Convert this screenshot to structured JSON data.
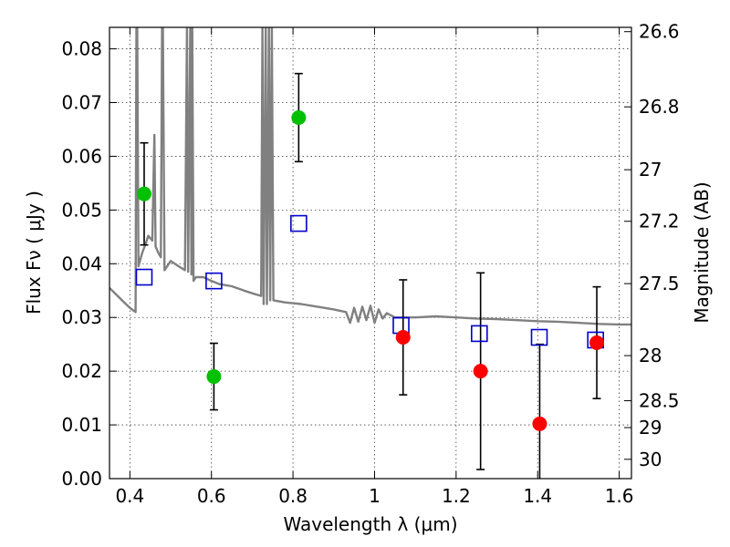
{
  "chart_data": {
    "type": "scatter",
    "xlabel": "Wavelength  λ (μm)",
    "ylabel": "Flux  Fν  ( μJy )",
    "y2label": "Magnitude (AB)",
    "xlim": [
      0.35,
      1.63
    ],
    "ylim": [
      0.0,
      0.084
    ],
    "grid": true,
    "x_ticks": [
      0.4,
      0.6,
      0.8,
      1.0,
      1.2,
      1.4,
      1.6
    ],
    "x_tick_labels": [
      "0.4",
      "0.6",
      "0.8",
      "1",
      "1.2",
      "1.4",
      "1.6"
    ],
    "y_ticks": [
      0.0,
      0.01,
      0.02,
      0.03,
      0.04,
      0.05,
      0.06,
      0.07,
      0.08
    ],
    "y_tick_labels": [
      "0.00",
      "0.01",
      "0.02",
      "0.03",
      "0.04",
      "0.05",
      "0.06",
      "0.07",
      "0.08"
    ],
    "y2_ticks": [
      {
        "label": "26.6",
        "flux": 0.0832
      },
      {
        "label": "26.8",
        "flux": 0.0692
      },
      {
        "label": "27",
        "flux": 0.0575
      },
      {
        "label": "27.2",
        "flux": 0.0479
      },
      {
        "label": "27.5",
        "flux": 0.0363
      },
      {
        "label": "28",
        "flux": 0.0229
      },
      {
        "label": "28.5",
        "flux": 0.0145
      },
      {
        "label": "29",
        "flux": 0.0095
      },
      {
        "label": "30",
        "flux": 0.0036
      }
    ],
    "colors": {
      "detections_blue": "#00c000",
      "detections_red": "#ff0000",
      "model_photometry": "#0000cc",
      "model_spectrum": "#808080",
      "errorbar": "#000000"
    },
    "series": [
      {
        "kind": "observed",
        "color": "green",
        "points": [
          {
            "x": 0.435,
            "y": 0.053,
            "err": 0.0095
          },
          {
            "x": 0.606,
            "y": 0.019,
            "err": 0.0062
          },
          {
            "x": 0.814,
            "y": 0.0672,
            "err": 0.0082
          }
        ]
      },
      {
        "kind": "observed",
        "color": "red",
        "points": [
          {
            "x": 1.07,
            "y": 0.0263,
            "err": 0.0107
          },
          {
            "x": 1.26,
            "y": 0.02,
            "err": 0.0183
          },
          {
            "x": 1.405,
            "y": 0.0102,
            "err": 0.0148
          },
          {
            "x": 1.545,
            "y": 0.0253,
            "err": 0.0104
          }
        ]
      },
      {
        "kind": "model_photometry",
        "points": [
          {
            "x": 0.435,
            "y": 0.0375
          },
          {
            "x": 0.606,
            "y": 0.0368
          },
          {
            "x": 0.814,
            "y": 0.0475
          },
          {
            "x": 1.065,
            "y": 0.0285
          },
          {
            "x": 1.257,
            "y": 0.027
          },
          {
            "x": 1.404,
            "y": 0.0263
          },
          {
            "x": 1.542,
            "y": 0.0258
          }
        ]
      }
    ],
    "model_spectrum": [
      [
        0.35,
        0.0355
      ],
      [
        0.37,
        0.034
      ],
      [
        0.39,
        0.0325
      ],
      [
        0.4,
        0.0318
      ],
      [
        0.41,
        0.0312
      ],
      [
        0.414,
        0.031
      ],
      [
        0.416,
        0.084
      ],
      [
        0.418,
        0.084
      ],
      [
        0.421,
        0.0395
      ],
      [
        0.43,
        0.042
      ],
      [
        0.44,
        0.044
      ],
      [
        0.445,
        0.0452
      ],
      [
        0.455,
        0.0443
      ],
      [
        0.46,
        0.064
      ],
      [
        0.463,
        0.0432
      ],
      [
        0.47,
        0.042
      ],
      [
        0.476,
        0.0412
      ],
      [
        0.479,
        0.084
      ],
      [
        0.481,
        0.084
      ],
      [
        0.485,
        0.0388
      ],
      [
        0.5,
        0.0405
      ],
      [
        0.52,
        0.0395
      ],
      [
        0.535,
        0.0388
      ],
      [
        0.54,
        0.084
      ],
      [
        0.543,
        0.0385
      ],
      [
        0.548,
        0.084
      ],
      [
        0.551,
        0.038
      ],
      [
        0.553,
        0.084
      ],
      [
        0.556,
        0.0368
      ],
      [
        0.562,
        0.0375
      ],
      [
        0.58,
        0.0375
      ],
      [
        0.6,
        0.0368
      ],
      [
        0.62,
        0.0362
      ],
      [
        0.65,
        0.0358
      ],
      [
        0.68,
        0.035
      ],
      [
        0.7,
        0.0345
      ],
      [
        0.722,
        0.034
      ],
      [
        0.725,
        0.084
      ],
      [
        0.728,
        0.0325
      ],
      [
        0.733,
        0.084
      ],
      [
        0.736,
        0.0325
      ],
      [
        0.741,
        0.084
      ],
      [
        0.744,
        0.0332
      ],
      [
        0.748,
        0.084
      ],
      [
        0.752,
        0.0332
      ],
      [
        0.78,
        0.0328
      ],
      [
        0.82,
        0.0325
      ],
      [
        0.86,
        0.032
      ],
      [
        0.9,
        0.0315
      ],
      [
        0.93,
        0.031
      ],
      [
        0.94,
        0.029
      ],
      [
        0.95,
        0.0318
      ],
      [
        0.96,
        0.0292
      ],
      [
        0.97,
        0.032
      ],
      [
        0.98,
        0.0295
      ],
      [
        0.99,
        0.0322
      ],
      [
        1.0,
        0.029
      ],
      [
        1.01,
        0.0315
      ],
      [
        1.02,
        0.0298
      ],
      [
        1.03,
        0.0308
      ],
      [
        1.05,
        0.03
      ],
      [
        1.1,
        0.03
      ],
      [
        1.15,
        0.0302
      ],
      [
        1.2,
        0.03
      ],
      [
        1.25,
        0.0298
      ],
      [
        1.3,
        0.0297
      ],
      [
        1.35,
        0.0295
      ],
      [
        1.4,
        0.0293
      ],
      [
        1.45,
        0.0292
      ],
      [
        1.5,
        0.029
      ],
      [
        1.55,
        0.0288
      ],
      [
        1.6,
        0.0287
      ],
      [
        1.63,
        0.0287
      ]
    ]
  }
}
